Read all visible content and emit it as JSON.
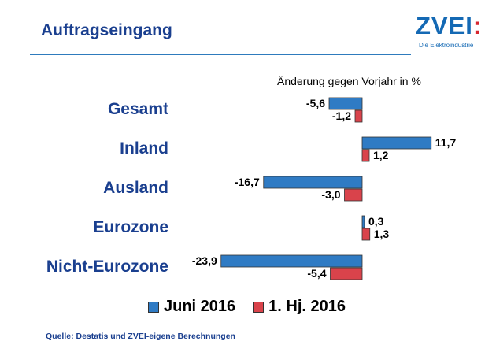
{
  "header": {
    "title": "Auftragseingang",
    "logo_name": "ZVEI",
    "logo_colon": ":",
    "logo_subtitle": "Die Elektroindustrie"
  },
  "chart_data": {
    "type": "bar",
    "orientation": "horizontal",
    "subtitle": "Änderung gegen Vorjahr in %",
    "categories": [
      "Gesamt",
      "Inland",
      "Ausland",
      "Eurozone",
      "Nicht-Eurozone"
    ],
    "series": [
      {
        "name": "Juni 2016",
        "values": [
          -5.6,
          11.7,
          -16.7,
          0.3,
          -23.9
        ],
        "labels": [
          "-5,6",
          "11,7",
          "-16,7",
          "0,3",
          "-23,9"
        ],
        "color": "#2f7bc4"
      },
      {
        "name": "1. Hj. 2016",
        "values": [
          -1.2,
          1.2,
          -3.0,
          1.3,
          -5.4
        ],
        "labels": [
          "-1,2",
          "1,2",
          "-3,0",
          "1,3",
          "-5,4"
        ],
        "color": "#d9434b"
      }
    ],
    "legend_position": "bottom",
    "grid": false
  },
  "footer": {
    "source": "Quelle: Destatis und ZVEI-eigene Berechnungen"
  }
}
